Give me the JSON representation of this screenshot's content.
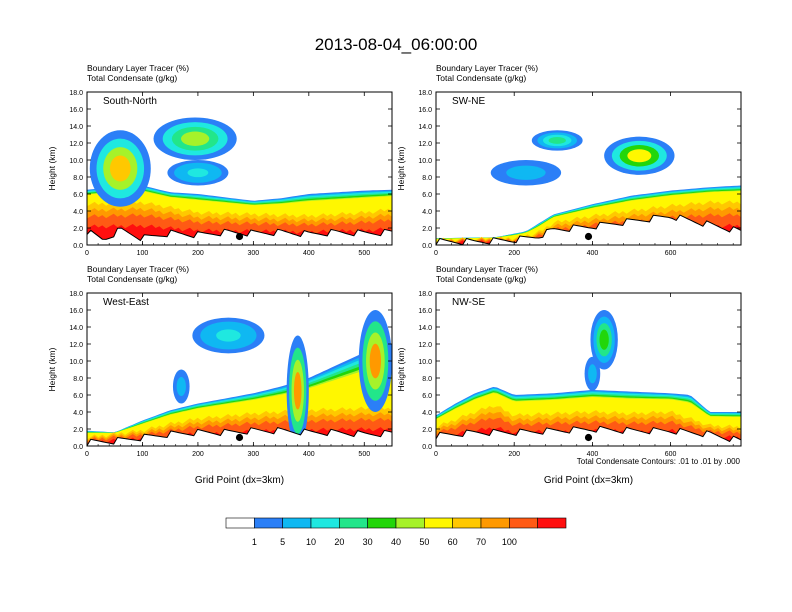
{
  "figure": {
    "title": "2013-08-04_06:00:00",
    "contour_note": "Total Condensate Contours: .01 to .01 by .000",
    "colorbar": {
      "labels": [
        "1",
        "5",
        "10",
        "20",
        "30",
        "40",
        "50",
        "60",
        "70",
        "100"
      ],
      "colors": [
        "#ffffff",
        "#2b7ff7",
        "#0fb8f2",
        "#1fe8e0",
        "#22e68a",
        "#22d60a",
        "#a6f22a",
        "#fff700",
        "#ffc800",
        "#ff9900",
        "#ff5a14",
        "#ff0f0f"
      ]
    }
  },
  "chart_data": [
    {
      "type": "heatmap",
      "panel_label": "South-North",
      "header_line1": "Boundary Layer Tracer   (%)",
      "header_line2": "Total Condensate   (g/kg)",
      "ylabel": "Height (km)",
      "xlabel": "",
      "xlim": [
        0,
        550
      ],
      "ylim": [
        0,
        18
      ],
      "xticks": [
        0,
        100,
        200,
        300,
        400,
        500
      ],
      "yticks": [
        "0.0",
        "2.0",
        "4.0",
        "6.0",
        "8.0",
        "10.0",
        "12.0",
        "14.0",
        "16.0",
        "18.0"
      ],
      "marker": {
        "x": 275,
        "y": 1.0
      },
      "terrain": [
        [
          0,
          1.6
        ],
        [
          30,
          0.6
        ],
        [
          60,
          1.8
        ],
        [
          100,
          0.8
        ],
        [
          150,
          1.4
        ],
        [
          200,
          1.2
        ],
        [
          250,
          1.5
        ],
        [
          300,
          1.4
        ],
        [
          350,
          1.5
        ],
        [
          400,
          1.3
        ],
        [
          450,
          1.5
        ],
        [
          500,
          1.4
        ],
        [
          550,
          1.5
        ]
      ],
      "bl_top": [
        [
          0,
          6.5
        ],
        [
          50,
          6.8
        ],
        [
          100,
          7.0
        ],
        [
          150,
          6.2
        ],
        [
          200,
          6.0
        ],
        [
          250,
          5.6
        ],
        [
          300,
          5.2
        ],
        [
          350,
          5.5
        ],
        [
          400,
          6.0
        ],
        [
          450,
          6.2
        ],
        [
          500,
          6.4
        ],
        [
          550,
          6.5
        ]
      ],
      "core_top": [
        [
          0,
          4.8
        ],
        [
          100,
          5.0
        ],
        [
          200,
          3.8
        ],
        [
          300,
          3.6
        ],
        [
          400,
          3.4
        ],
        [
          500,
          3.8
        ],
        [
          550,
          4.2
        ]
      ],
      "clouds": [
        {
          "x": 60,
          "y": 9.0,
          "w": 110,
          "h": 9.0,
          "level": 8
        },
        {
          "x": 195,
          "y": 12.5,
          "w": 150,
          "h": 5.0,
          "level": 6
        },
        {
          "x": 200,
          "y": 8.5,
          "w": 110,
          "h": 3.0,
          "level": 3
        }
      ]
    },
    {
      "type": "heatmap",
      "panel_label": "SW-NE",
      "header_line1": "Boundary Layer Tracer   (%)",
      "header_line2": "Total Condensate   (g/kg)",
      "ylabel": "Height (km)",
      "xlabel": "",
      "xlim": [
        0,
        780
      ],
      "ylim": [
        0,
        18
      ],
      "xticks": [
        0,
        200,
        400,
        600
      ],
      "yticks": [
        "0.0",
        "2.0",
        "4.0",
        "6.0",
        "8.0",
        "10.0",
        "12.0",
        "14.0",
        "16.0",
        "18.0"
      ],
      "marker": {
        "x": 390,
        "y": 1.0
      },
      "terrain": [
        [
          0,
          0.4
        ],
        [
          100,
          0.4
        ],
        [
          200,
          0.6
        ],
        [
          260,
          1.0
        ],
        [
          300,
          1.8
        ],
        [
          400,
          2.2
        ],
        [
          500,
          2.8
        ],
        [
          600,
          3.4
        ],
        [
          700,
          2.4
        ],
        [
          780,
          1.6
        ]
      ],
      "bl_top": [
        [
          0,
          0.8
        ],
        [
          150,
          0.9
        ],
        [
          230,
          1.6
        ],
        [
          300,
          3.6
        ],
        [
          400,
          4.8
        ],
        [
          500,
          5.8
        ],
        [
          600,
          6.4
        ],
        [
          700,
          6.8
        ],
        [
          780,
          7.0
        ]
      ],
      "core_top": [
        [
          0,
          0.6
        ],
        [
          200,
          0.8
        ],
        [
          260,
          1.4
        ],
        [
          300,
          2.6
        ],
        [
          400,
          3.4
        ],
        [
          500,
          4.0
        ],
        [
          600,
          4.6
        ],
        [
          700,
          5.0
        ],
        [
          780,
          5.0
        ]
      ],
      "clouds": [
        {
          "x": 230,
          "y": 8.5,
          "w": 180,
          "h": 3.0,
          "level": 2
        },
        {
          "x": 520,
          "y": 10.5,
          "w": 180,
          "h": 4.5,
          "level": 7
        },
        {
          "x": 310,
          "y": 12.3,
          "w": 130,
          "h": 2.4,
          "level": 4
        }
      ]
    },
    {
      "type": "heatmap",
      "panel_label": "West-East",
      "header_line1": "Boundary Layer Tracer   (%)",
      "header_line2": "Total Condensate   (g/kg)",
      "ylabel": "Height (km)",
      "xlabel": "Grid Point (dx=3km)",
      "xlim": [
        0,
        550
      ],
      "ylim": [
        0,
        18
      ],
      "xticks": [
        0,
        100,
        200,
        300,
        400,
        500
      ],
      "yticks": [
        "0.0",
        "2.0",
        "4.0",
        "6.0",
        "8.0",
        "10.0",
        "12.0",
        "14.0",
        "16.0",
        "18.0"
      ],
      "marker": {
        "x": 275,
        "y": 1.0
      },
      "terrain": [
        [
          0,
          0.4
        ],
        [
          50,
          0.6
        ],
        [
          100,
          1.0
        ],
        [
          150,
          1.4
        ],
        [
          200,
          1.6
        ],
        [
          250,
          1.6
        ],
        [
          300,
          1.8
        ],
        [
          350,
          1.8
        ],
        [
          400,
          1.6
        ],
        [
          450,
          1.6
        ],
        [
          500,
          1.4
        ],
        [
          550,
          1.5
        ]
      ],
      "bl_top": [
        [
          0,
          1.8
        ],
        [
          50,
          1.6
        ],
        [
          100,
          3.0
        ],
        [
          150,
          4.2
        ],
        [
          200,
          5.0
        ],
        [
          250,
          5.6
        ],
        [
          300,
          6.2
        ],
        [
          350,
          7.0
        ],
        [
          400,
          8.0
        ],
        [
          450,
          9.5
        ],
        [
          500,
          11.0
        ],
        [
          550,
          12.0
        ]
      ],
      "core_top": [
        [
          0,
          1.0
        ],
        [
          100,
          1.8
        ],
        [
          150,
          2.6
        ],
        [
          200,
          3.2
        ],
        [
          300,
          3.8
        ],
        [
          400,
          4.2
        ],
        [
          500,
          4.4
        ],
        [
          550,
          4.4
        ]
      ],
      "clouds": [
        {
          "x": 255,
          "y": 13.0,
          "w": 130,
          "h": 4.2,
          "level": 3
        },
        {
          "x": 380,
          "y": 6.5,
          "w": 40,
          "h": 13.0,
          "level": 9
        },
        {
          "x": 520,
          "y": 10.0,
          "w": 60,
          "h": 12.0,
          "level": 9
        },
        {
          "x": 170,
          "y": 7.0,
          "w": 30,
          "h": 4.0,
          "level": 2
        }
      ]
    },
    {
      "type": "heatmap",
      "panel_label": "NW-SE",
      "header_line1": "Boundary Layer Tracer   (%)",
      "header_line2": "Total Condensate   (g/kg)",
      "ylabel": "Height (km)",
      "xlabel": "Grid Point (dx=3km)",
      "xlim": [
        0,
        780
      ],
      "ylim": [
        0,
        18
      ],
      "xticks": [
        0,
        200,
        400,
        600
      ],
      "yticks": [
        "0.0",
        "2.0",
        "4.0",
        "6.0",
        "8.0",
        "10.0",
        "12.0",
        "14.0",
        "16.0",
        "18.0"
      ],
      "marker": {
        "x": 390,
        "y": 1.0
      },
      "terrain": [
        [
          0,
          1.2
        ],
        [
          100,
          1.6
        ],
        [
          200,
          1.6
        ],
        [
          300,
          1.8
        ],
        [
          400,
          2.0
        ],
        [
          500,
          1.8
        ],
        [
          600,
          1.8
        ],
        [
          700,
          1.4
        ],
        [
          780,
          0.6
        ]
      ],
      "bl_top": [
        [
          0,
          3.6
        ],
        [
          50,
          5.0
        ],
        [
          100,
          6.2
        ],
        [
          150,
          7.0
        ],
        [
          200,
          6.0
        ],
        [
          300,
          6.2
        ],
        [
          400,
          6.6
        ],
        [
          500,
          6.4
        ],
        [
          600,
          6.2
        ],
        [
          650,
          6.0
        ],
        [
          700,
          4.0
        ],
        [
          780,
          4.0
        ]
      ],
      "core_top": [
        [
          0,
          2.2
        ],
        [
          100,
          4.0
        ],
        [
          150,
          4.8
        ],
        [
          200,
          3.6
        ],
        [
          300,
          3.8
        ],
        [
          400,
          4.0
        ],
        [
          500,
          3.8
        ],
        [
          600,
          4.0
        ],
        [
          700,
          2.4
        ],
        [
          780,
          2.2
        ]
      ],
      "clouds": [
        {
          "x": 430,
          "y": 12.5,
          "w": 70,
          "h": 7.0,
          "level": 5
        },
        {
          "x": 400,
          "y": 8.5,
          "w": 40,
          "h": 4.0,
          "level": 2
        }
      ]
    }
  ]
}
